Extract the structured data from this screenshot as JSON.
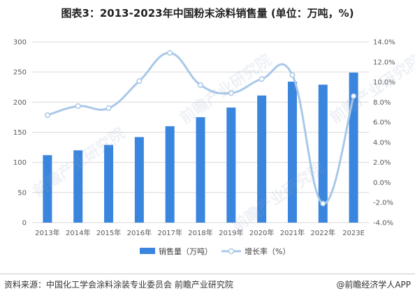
{
  "title": "图表3：2013-2023年中国粉末涂料销售量 (单位：万吨，%)",
  "colors": {
    "bar": "#3a85dd",
    "line": "#a9c8e8",
    "marker_fill": "#ffffff",
    "grid": "#d9d9d9"
  },
  "chart_data": {
    "type": "bar",
    "title": "图表3：2013-2023年中国粉末涂料销售量 (单位：万吨，%)",
    "categories": [
      "2013年",
      "2014年",
      "2015年",
      "2016年",
      "2017年",
      "2018年",
      "2019年",
      "2020年",
      "2021年",
      "2022年",
      "2023E"
    ],
    "series": [
      {
        "name": "销售量（万吨）",
        "type": "bar",
        "axis": "left",
        "values": [
          112,
          120,
          129,
          142,
          160,
          175,
          191,
          211,
          234,
          229,
          249
        ]
      },
      {
        "name": "增长率（%）",
        "type": "line",
        "smooth": true,
        "axis": "right",
        "values": [
          6.7,
          7.6,
          7.4,
          10.1,
          12.9,
          9.7,
          8.9,
          10.3,
          10.7,
          -2.1,
          8.6
        ]
      }
    ],
    "y_left": {
      "min": 0,
      "max": 300,
      "step": 50,
      "ticks": [
        "0",
        "50",
        "100",
        "150",
        "200",
        "250",
        "300"
      ]
    },
    "y_right": {
      "min": -4,
      "max": 14,
      "step": 2,
      "ticks": [
        "-4.0%",
        "-2.0%",
        "0.0%",
        "2.0%",
        "4.0%",
        "6.0%",
        "8.0%",
        "10.0%",
        "12.0%",
        "14.0%"
      ]
    },
    "grid": true,
    "legend": {
      "placement": "bottom",
      "entries": [
        "销售量（万吨）",
        "增长率（%）"
      ]
    }
  },
  "footer": {
    "source": "资料来源：中国化工学会涂料涂装专业委员会 前瞻产业研究院",
    "credit": "@前瞻经济学人APP"
  },
  "watermark": {
    "text": "前瞻产业研究院"
  }
}
